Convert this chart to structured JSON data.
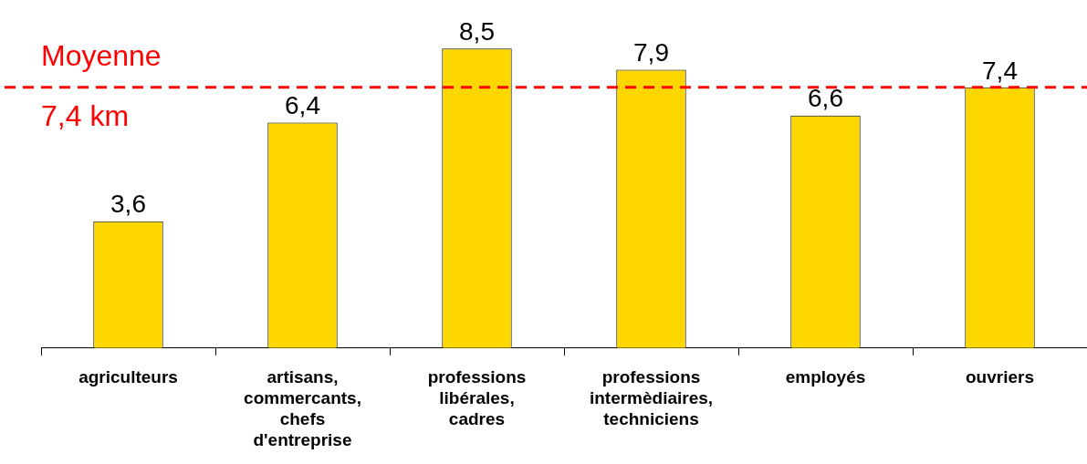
{
  "chart_data": {
    "type": "bar",
    "categories": [
      "agriculteurs",
      "artisans,\ncommercants,\nchefs\nd'entreprise",
      "professions\nlibérales,\ncadres",
      "professions\nintermèdiaires,\ntechniciens",
      "employés",
      "ouvriers"
    ],
    "values": [
      3.6,
      6.4,
      8.5,
      7.9,
      6.6,
      7.4
    ],
    "value_labels": [
      "3,6",
      "6,4",
      "8,5",
      "7,9",
      "6,6",
      "7,4"
    ],
    "color": "#ffd700",
    "tick_labels": "x",
    "grid": false,
    "legend": false,
    "ref_lines": [
      {
        "axis": "y",
        "value": 7.4,
        "label": "Moyenne\n7,4 km",
        "color": "#ff0000",
        "line_style": "dashed"
      }
    ]
  }
}
